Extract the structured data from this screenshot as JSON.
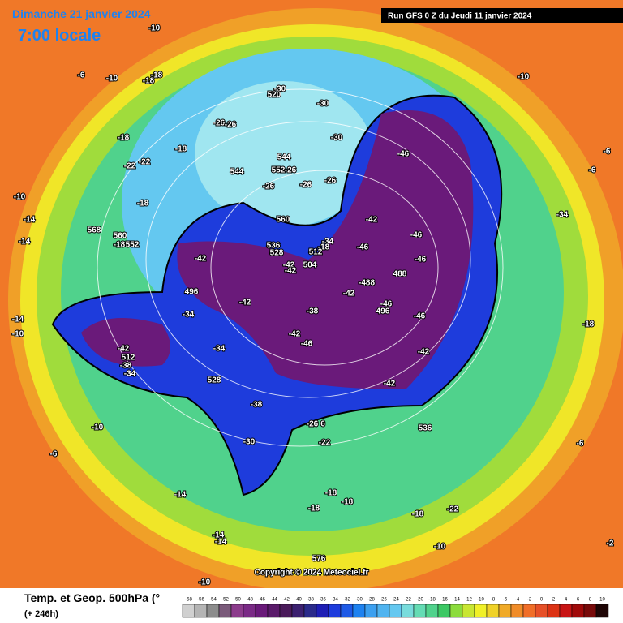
{
  "header": {
    "date": "Dimanche 21 janvier 2024",
    "time": "7:00 locale",
    "run": "Run GFS 0 Z du Jeudi 11 janvier 2024"
  },
  "footer": {
    "title": "Temp. et Geop. 500hPa (°",
    "lead": "(+ 246h)",
    "copyright": "Copyright © 2024 Meteociel.fr"
  },
  "scale": {
    "values": [
      -58,
      -56,
      -54,
      -52,
      -50,
      -48,
      -46,
      -44,
      -42,
      -40,
      -38,
      -36,
      -34,
      -32,
      -30,
      -28,
      -26,
      -24,
      -22,
      -20,
      -18,
      -16,
      -14,
      -12,
      -10,
      -8,
      -6,
      -4,
      -2,
      0,
      2,
      4,
      6,
      8,
      10
    ],
    "colors": [
      "#d0d0d0",
      "#b4b4b4",
      "#8c8c8c",
      "#7a5a7a",
      "#8c3c8c",
      "#7a2a86",
      "#6a1a7a",
      "#5a1a6a",
      "#4a1a5a",
      "#3c2070",
      "#2a2a8a",
      "#1e1eb4",
      "#1e3cdc",
      "#1e5ae6",
      "#1e82f0",
      "#3ca0f0",
      "#50b4f0",
      "#64c8f0",
      "#78dcdc",
      "#64dcb4",
      "#50d28c",
      "#3cc864",
      "#8cdc3c",
      "#c8e632",
      "#f0f028",
      "#f0d228",
      "#f0aa28",
      "#f08c28",
      "#f06e28",
      "#e65028",
      "#dc3214",
      "#c81414",
      "#a00a0a",
      "#780a0a",
      "#1e0505"
    ]
  },
  "labels": [
    -10,
    -6,
    -10,
    -18,
    -18,
    -10,
    -30,
    520,
    -30,
    -26,
    -26,
    -30,
    -46,
    -18,
    -18,
    -22,
    -22,
    -6,
    -6,
    544,
    552,
    -26,
    -26,
    -26,
    -26,
    544,
    -10,
    -18,
    -14,
    -34,
    560,
    -42,
    568,
    560,
    -14,
    -18,
    552,
    536,
    -34,
    -18,
    528,
    512,
    -46,
    -46,
    -42,
    -42,
    504,
    -46,
    -42,
    488,
    -488,
    -42,
    496,
    -42,
    -46,
    496,
    -38,
    -34,
    -46,
    -18,
    -14,
    -10,
    -42,
    -46,
    -42,
    -34,
    512,
    -42,
    -38,
    -34,
    528,
    -42,
    -38,
    -26,
    6,
    536,
    -10,
    -22,
    -30,
    -6,
    -6,
    -14,
    -18,
    -18,
    -18,
    -18,
    -22,
    -14,
    -14,
    -10,
    -2,
    576,
    -10
  ]
}
